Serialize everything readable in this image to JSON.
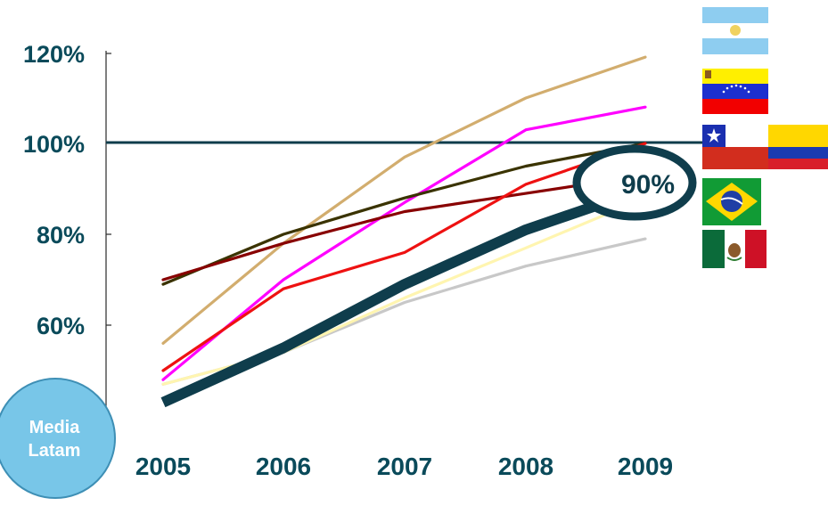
{
  "chart_data": {
    "type": "line",
    "x": [
      "2005",
      "2006",
      "2007",
      "2008",
      "2009"
    ],
    "yticks": [
      "60%",
      "80%",
      "100%",
      "120%"
    ],
    "ylim": [
      40,
      125
    ],
    "reference_line": {
      "value": 100,
      "color": "#0f3d4c"
    },
    "grid": false,
    "series": [
      {
        "id": "argentina",
        "color": "#d2ad6e",
        "values": [
          56,
          78,
          97,
          110,
          119
        ]
      },
      {
        "id": "venezuela",
        "color": "#ff00ff",
        "values": [
          48,
          70,
          87,
          103,
          108
        ]
      },
      {
        "id": "chile",
        "color": "#3a3300",
        "values": [
          69,
          80,
          88,
          95,
          100
        ]
      },
      {
        "id": "colombia",
        "color": "#880000",
        "values": [
          70,
          78,
          85,
          89,
          93
        ]
      },
      {
        "id": "brazil",
        "color": "#ee1111",
        "values": [
          50,
          68,
          76,
          91,
          100
        ]
      },
      {
        "id": "mexico",
        "color": "#c8c8c8",
        "values": [
          47,
          54,
          65,
          73,
          79
        ]
      },
      {
        "id": "peru",
        "color": "#fff5b0",
        "values": [
          47,
          54,
          66,
          77,
          88
        ]
      },
      {
        "id": "media-latam",
        "color": "#0f3d4c",
        "values": [
          43,
          55,
          69,
          81,
          90
        ],
        "bold": true
      }
    ],
    "callout": {
      "text": "90%",
      "x": "2009",
      "y": 90
    },
    "badge": {
      "line1": "Media",
      "line2": "Latam"
    }
  },
  "legend": {
    "flags": [
      "flag-argentina",
      "flag-venezuela",
      "flag-chile",
      "flag-colombia",
      "flag-brazil",
      "flag-mexico"
    ]
  },
  "colors": {
    "text": "#0a4a5a",
    "badge_fill": "#78c6e8",
    "badge_stroke": "#3e8fb5"
  }
}
